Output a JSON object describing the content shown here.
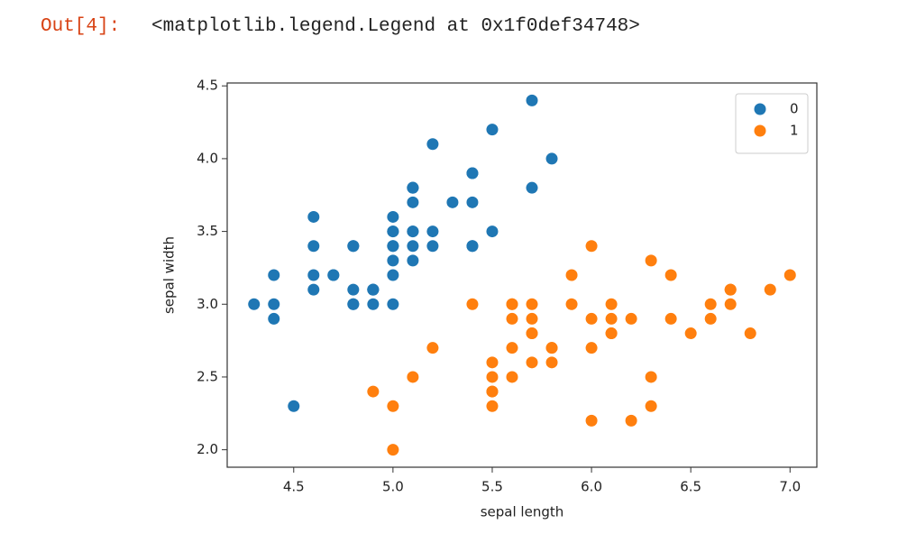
{
  "output": {
    "prompt": "Out[4]:",
    "text": "<matplotlib.legend.Legend at 0x1f0def34748>"
  },
  "chart_data": {
    "type": "scatter",
    "xlabel": "sepal length",
    "ylabel": "sepal width",
    "xlim": [
      4.165,
      7.135
    ],
    "ylim": [
      1.88,
      4.52
    ],
    "xticks": [
      4.5,
      {
        "value": 5,
        "label": "5.0"
      },
      5.5,
      {
        "value": 6,
        "label": "6.0"
      },
      6.5,
      {
        "value": 7,
        "label": "7.0"
      }
    ],
    "yticks": [
      {
        "value": 2,
        "label": "2.0"
      },
      2.5,
      {
        "value": 3,
        "label": "3.0"
      },
      3.5,
      {
        "value": 4,
        "label": "4.0"
      },
      4.5
    ],
    "legend": "upper right",
    "series": [
      {
        "name": "0",
        "color": "#1f77b4",
        "x": [
          5.1,
          4.9,
          4.7,
          4.6,
          5.0,
          5.4,
          4.6,
          5.0,
          4.4,
          4.9,
          5.4,
          4.8,
          4.8,
          4.3,
          5.8,
          5.7,
          5.4,
          5.1,
          5.7,
          5.1,
          5.4,
          5.1,
          4.6,
          5.1,
          4.8,
          5.0,
          5.0,
          5.2,
          5.2,
          4.7,
          4.8,
          5.4,
          5.2,
          5.5,
          4.9,
          5.0,
          5.5,
          4.9,
          4.4,
          5.1,
          5.0,
          4.5,
          4.4,
          5.0,
          5.1,
          4.8,
          5.1,
          4.6,
          5.3,
          5.0
        ],
        "values": [
          3.5,
          3.0,
          3.2,
          3.1,
          3.6,
          3.9,
          3.4,
          3.4,
          2.9,
          3.1,
          3.7,
          3.4,
          3.0,
          3.0,
          4.0,
          4.4,
          3.9,
          3.5,
          3.8,
          3.8,
          3.4,
          3.7,
          3.6,
          3.3,
          3.4,
          3.0,
          3.4,
          3.5,
          3.4,
          3.2,
          3.1,
          3.4,
          4.1,
          4.2,
          3.1,
          3.2,
          3.5,
          3.1,
          3.0,
          3.4,
          3.5,
          2.3,
          3.2,
          3.5,
          3.8,
          3.0,
          3.8,
          3.2,
          3.7,
          3.3
        ]
      },
      {
        "name": "1",
        "color": "#ff7f0e",
        "x": [
          7.0,
          6.4,
          6.9,
          5.5,
          6.5,
          5.7,
          6.3,
          4.9,
          6.6,
          5.2,
          5.0,
          5.9,
          6.0,
          6.1,
          5.6,
          6.7,
          5.6,
          5.8,
          6.2,
          5.6,
          5.9,
          6.1,
          6.3,
          6.1,
          6.4,
          6.6,
          6.8,
          6.7,
          6.0,
          5.7,
          5.5,
          5.5,
          5.8,
          6.0,
          5.4,
          6.0,
          6.7,
          6.3,
          5.6,
          5.5,
          5.5,
          6.1,
          5.8,
          5.0,
          5.6,
          5.7,
          5.7,
          6.2,
          5.1,
          5.7
        ],
        "values": [
          3.2,
          3.2,
          3.1,
          2.3,
          2.8,
          2.8,
          3.3,
          2.4,
          2.9,
          2.7,
          2.0,
          3.0,
          2.2,
          2.9,
          2.9,
          3.1,
          3.0,
          2.7,
          2.2,
          2.5,
          3.2,
          2.8,
          2.5,
          2.8,
          2.9,
          3.0,
          2.8,
          3.0,
          2.9,
          2.6,
          2.4,
          2.4,
          2.7,
          2.7,
          3.0,
          3.4,
          3.1,
          2.3,
          3.0,
          2.5,
          2.6,
          3.0,
          2.6,
          2.3,
          2.7,
          3.0,
          2.9,
          2.9,
          2.5,
          2.8
        ]
      }
    ]
  }
}
